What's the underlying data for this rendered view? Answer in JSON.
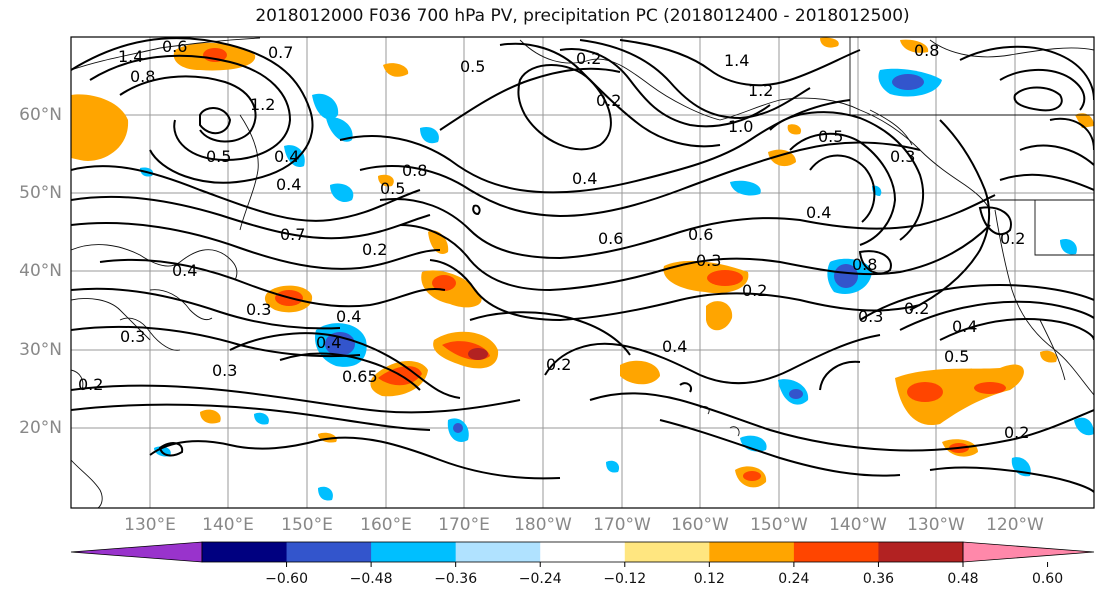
{
  "title": "2018012000 F036 700 hPa PV, precipitation PC (2018012400 - 2018012500)",
  "lat_labels": [
    "60°N",
    "50°N",
    "40°N",
    "30°N",
    "20°N"
  ],
  "lon_labels": [
    "130°E",
    "140°E",
    "150°E",
    "160°E",
    "170°E",
    "180°W",
    "170°W",
    "160°W",
    "150°W",
    "140°W",
    "130°W",
    "120°W"
  ],
  "colorbar": {
    "ticks": [
      "−0.60",
      "−0.48",
      "−0.36",
      "−0.24",
      "−0.12",
      "0.12",
      "0.24",
      "0.36",
      "0.48",
      "0.60"
    ],
    "colors": [
      "#9933cc",
      "#000080",
      "#3355cc",
      "#00bfff",
      "#b0e2ff",
      "#ffffff",
      "#ffe680",
      "#ffa500",
      "#ff4500",
      "#b22222",
      "#ff88aa"
    ]
  },
  "contour_labels": [
    "1.4",
    "1.2",
    "0.8",
    "0.7",
    "0.6",
    "0.5",
    "0.4",
    "0.3",
    "0.2",
    "0.7",
    "0.5",
    "1.4",
    "1.2",
    "1.0",
    "0.8",
    "0.5",
    "0.4",
    "0.4",
    "0.2",
    "0.6",
    "0.6",
    "0.4",
    "0.3",
    "0.2",
    "0.8",
    "0.8",
    "0.5",
    "0.4",
    "0.3",
    "0.2",
    "0.4",
    "0.3",
    "0.4",
    "0.65",
    "0.3",
    "0.2",
    "0.4",
    "0.2",
    "0.3",
    "0.2",
    "0.5",
    "0.4",
    "0.2",
    "0.2"
  ]
}
